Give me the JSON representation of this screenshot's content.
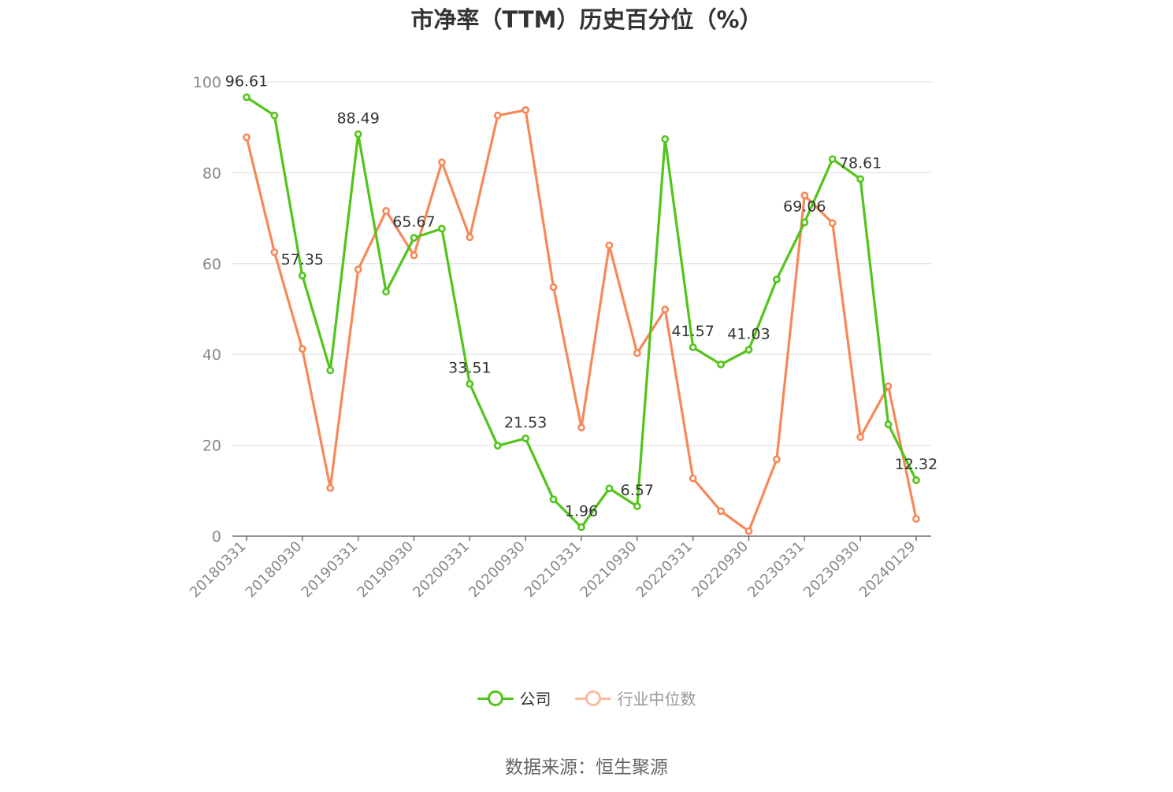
{
  "title": "市净率（TTM）历史百分位（%）",
  "source": "数据来源：恒生聚源",
  "colors": {
    "company": "#52c41a",
    "industry": "#f5895a",
    "industry_legend": "#f8bba2",
    "grid": "#e6e6ee",
    "axis": "#888888"
  },
  "legend": [
    {
      "name": "公司",
      "color": "#52c41a",
      "active": true
    },
    {
      "name": "行业中位数",
      "color": "#f8bba2",
      "active": false
    }
  ],
  "chart_data": {
    "type": "line",
    "title": "市净率（TTM）历史百分位（%）",
    "ylim": [
      0,
      100
    ],
    "y_ticks": [
      "0",
      "20",
      "40",
      "60",
      "80",
      "100"
    ],
    "x_tick_labels": [
      "20180331",
      "20180930",
      "20190331",
      "20190930",
      "20200331",
      "20200930",
      "20210331",
      "20210930",
      "20220331",
      "20220930",
      "20230331",
      "20230930",
      "20240129"
    ],
    "grid": true,
    "legend_position": "bottom",
    "x": [
      "20180331",
      "20180630",
      "20180930",
      "20181231",
      "20190331",
      "20190630",
      "20190930",
      "20191231",
      "20200331",
      "20200630",
      "20200930",
      "20201231",
      "20210331",
      "20210630",
      "20210930",
      "20211231",
      "20220331",
      "20220630",
      "20220930",
      "20221231",
      "20230331",
      "20230630",
      "20230930",
      "20231231",
      "20240129"
    ],
    "series": [
      {
        "name": "公司",
        "color": "#52c41a",
        "values": [
          96.61,
          92.6,
          57.35,
          36.5,
          88.49,
          53.8,
          65.67,
          67.7,
          33.51,
          19.9,
          21.53,
          8.1,
          1.96,
          10.5,
          6.57,
          87.4,
          41.57,
          37.8,
          41.03,
          56.5,
          69.06,
          83.0,
          78.61,
          24.6,
          12.32
        ],
        "labels": [
          "96.61",
          "",
          "57.35",
          "",
          "88.49",
          "",
          "65.67",
          "",
          "33.51",
          "",
          "21.53",
          "",
          "1.96",
          "",
          "6.57",
          "",
          "41.57",
          "",
          "41.03",
          "",
          "69.06",
          "",
          "78.61",
          "",
          "12.32"
        ]
      },
      {
        "name": "行业中位数",
        "color": "#f5895a",
        "values": [
          87.8,
          62.5,
          41.2,
          10.6,
          58.7,
          71.6,
          61.8,
          82.3,
          65.8,
          92.6,
          93.8,
          54.8,
          23.9,
          64.0,
          40.3,
          49.9,
          12.7,
          5.5,
          1.1,
          16.9,
          75.0,
          68.9,
          21.8,
          33.0,
          3.8
        ]
      }
    ]
  }
}
